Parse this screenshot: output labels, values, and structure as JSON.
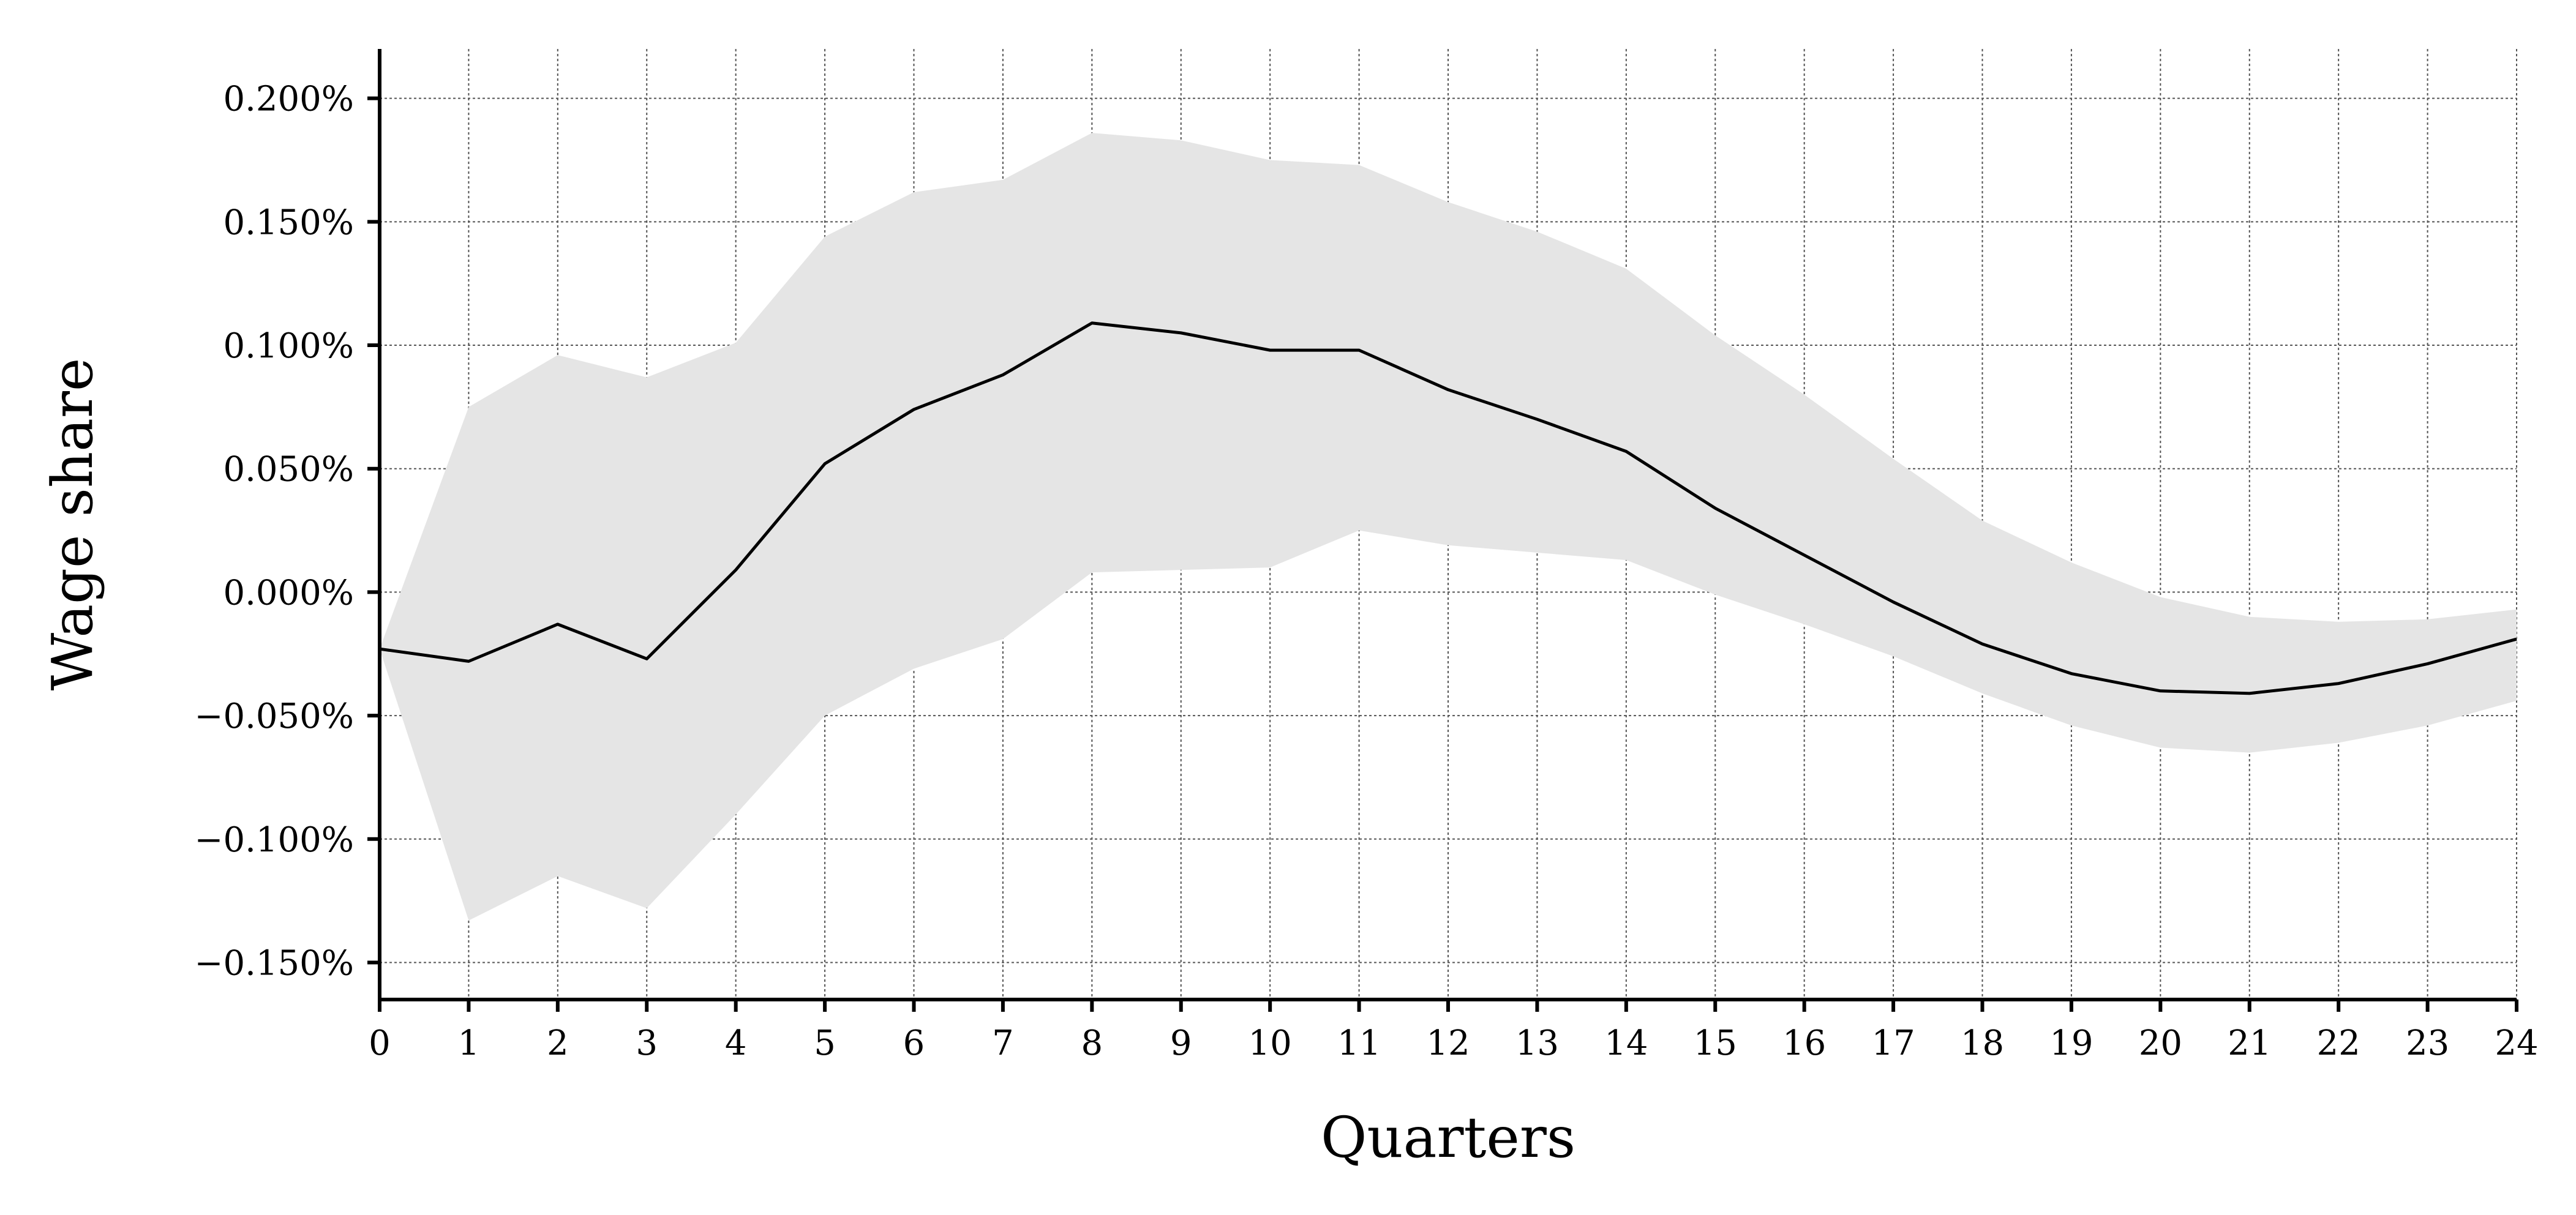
{
  "chart_data": {
    "type": "line",
    "title": "",
    "xlabel": "Quarters",
    "ylabel": "Wage share",
    "xlim": [
      0,
      24
    ],
    "ylim": [
      -0.165,
      0.22
    ],
    "x_ticks": [
      0,
      1,
      2,
      3,
      4,
      5,
      6,
      7,
      8,
      9,
      10,
      11,
      12,
      13,
      14,
      15,
      16,
      17,
      18,
      19,
      20,
      21,
      22,
      23,
      24
    ],
    "x_tick_labels": [
      "0",
      "1",
      "2",
      "3",
      "4",
      "5",
      "6",
      "7",
      "8",
      "9",
      "10",
      "11",
      "12",
      "13",
      "14",
      "15",
      "16",
      "17",
      "18",
      "19",
      "20",
      "21",
      "22",
      "23",
      "24"
    ],
    "y_ticks": [
      0.2,
      0.15,
      0.1,
      0.05,
      0.0,
      -0.05,
      -0.1,
      -0.15
    ],
    "y_tick_labels": [
      "0.200%",
      "0.150%",
      "0.100%",
      "0.050%",
      "0.000%",
      "−0.050%",
      "−0.100%",
      "−0.150%"
    ],
    "grid": true,
    "legend": "none",
    "colors": {
      "line": "#000000",
      "band": "#e5e5e5",
      "grid": "#555555"
    },
    "x": [
      0,
      1,
      2,
      3,
      4,
      5,
      6,
      7,
      8,
      9,
      10,
      11,
      12,
      13,
      14,
      15,
      16,
      17,
      18,
      19,
      20,
      21,
      22,
      23,
      24
    ],
    "series": [
      {
        "values": [
          -0.023,
          -0.028,
          -0.013,
          -0.027,
          0.009,
          0.052,
          0.074,
          0.088,
          0.109,
          0.105,
          0.098,
          0.098,
          0.082,
          0.07,
          0.057,
          0.034,
          0.015,
          -0.004,
          -0.021,
          -0.033,
          -0.04,
          -0.041,
          -0.037,
          -0.029,
          -0.019
        ]
      }
    ],
    "band": {
      "lower": [
        -0.023,
        -0.133,
        -0.115,
        -0.128,
        -0.09,
        -0.05,
        -0.031,
        -0.019,
        0.008,
        0.009,
        0.01,
        0.025,
        0.019,
        0.016,
        0.013,
        -0.001,
        -0.013,
        -0.026,
        -0.041,
        -0.054,
        -0.063,
        -0.065,
        -0.061,
        -0.054,
        -0.044
      ],
      "upper": [
        -0.023,
        0.075,
        0.096,
        0.087,
        0.101,
        0.144,
        0.162,
        0.167,
        0.186,
        0.183,
        0.175,
        0.173,
        0.158,
        0.146,
        0.131,
        0.104,
        0.08,
        0.054,
        0.029,
        0.012,
        -0.002,
        -0.01,
        -0.012,
        -0.011,
        -0.007
      ]
    }
  }
}
